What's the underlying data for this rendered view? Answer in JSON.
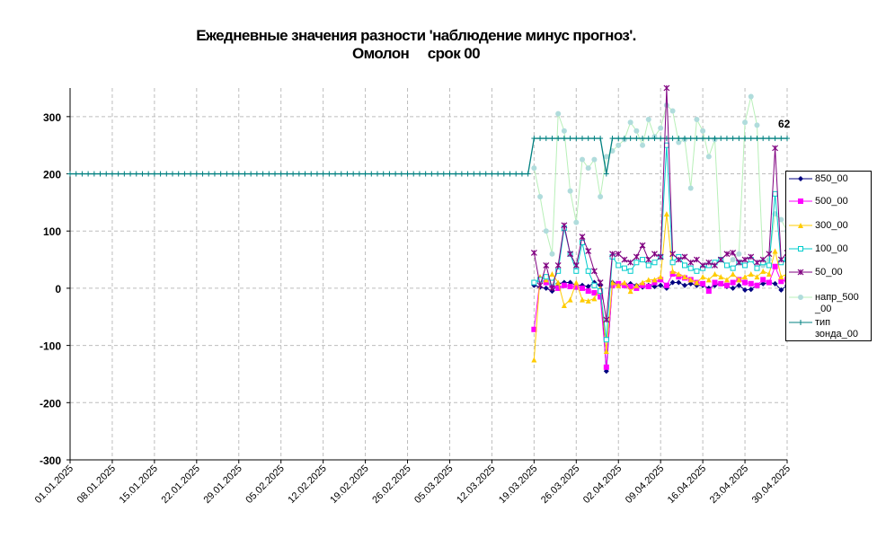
{
  "chart_data": {
    "type": "line",
    "title_line1": "Ежедневные значения разности 'наблюдение минус прогноз'.",
    "title_line2": "Омолон     срок 00",
    "x_start": "2025-01-01",
    "x_end": "2025-04-30",
    "x_tick_labels": [
      "01.01.2025",
      "08.01.2025",
      "15.01.2025",
      "22.01.2025",
      "29.01.2025",
      "05.02.2025",
      "12.02.2025",
      "19.02.2025",
      "26.02.2025",
      "05.03.2025",
      "12.03.2025",
      "19.03.2025",
      "26.03.2025",
      "02.04.2025",
      "09.04.2025",
      "16.04.2025",
      "23.04.2025",
      "30.04.2025"
    ],
    "y_ticks": [
      300,
      200,
      100,
      0,
      -100,
      -200,
      -300
    ],
    "ylim": [
      -300,
      350
    ],
    "grid": true,
    "legend_position": "right",
    "annotation": "62",
    "series": [
      {
        "name": "850_00",
        "color": "#000080",
        "marker": "diamond",
        "points": [
          [
            "2025-03-19",
            5
          ],
          [
            "2025-03-20",
            2
          ],
          [
            "2025-03-21",
            0
          ],
          [
            "2025-03-22",
            -5
          ],
          [
            "2025-03-23",
            8
          ],
          [
            "2025-03-24",
            10
          ],
          [
            "2025-03-25",
            10
          ],
          [
            "2025-03-26",
            5
          ],
          [
            "2025-03-27",
            5
          ],
          [
            "2025-03-28",
            3
          ],
          [
            "2025-03-29",
            10
          ],
          [
            "2025-03-30",
            5
          ],
          [
            "2025-03-31",
            -145
          ],
          [
            "2025-04-01",
            10
          ],
          [
            "2025-04-02",
            8
          ],
          [
            "2025-04-03",
            5
          ],
          [
            "2025-04-04",
            8
          ],
          [
            "2025-04-05",
            5
          ],
          [
            "2025-04-06",
            2
          ],
          [
            "2025-04-07",
            5
          ],
          [
            "2025-04-08",
            3
          ],
          [
            "2025-04-09",
            5
          ],
          [
            "2025-04-10",
            0
          ],
          [
            "2025-04-11",
            10
          ],
          [
            "2025-04-12",
            10
          ],
          [
            "2025-04-13",
            5
          ],
          [
            "2025-04-14",
            8
          ],
          [
            "2025-04-15",
            5
          ],
          [
            "2025-04-16",
            5
          ],
          [
            "2025-04-17",
            0
          ],
          [
            "2025-04-18",
            5
          ],
          [
            "2025-04-19",
            8
          ],
          [
            "2025-04-20",
            3
          ],
          [
            "2025-04-21",
            0
          ],
          [
            "2025-04-22",
            5
          ],
          [
            "2025-04-23",
            -3
          ],
          [
            "2025-04-24",
            -2
          ],
          [
            "2025-04-25",
            5
          ],
          [
            "2025-04-26",
            8
          ],
          [
            "2025-04-27",
            10
          ],
          [
            "2025-04-28",
            8
          ],
          [
            "2025-04-29",
            -3
          ],
          [
            "2025-04-30",
            5
          ]
        ]
      },
      {
        "name": "500_00",
        "color": "#ff00ff",
        "marker": "square",
        "points": [
          [
            "2025-03-19",
            -72
          ],
          [
            "2025-03-20",
            15
          ],
          [
            "2025-03-21",
            10
          ],
          [
            "2025-03-22",
            5
          ],
          [
            "2025-03-23",
            0
          ],
          [
            "2025-03-24",
            5
          ],
          [
            "2025-03-25",
            3
          ],
          [
            "2025-03-26",
            2
          ],
          [
            "2025-03-27",
            0
          ],
          [
            "2025-03-28",
            -5
          ],
          [
            "2025-03-29",
            -8
          ],
          [
            "2025-03-30",
            -15
          ],
          [
            "2025-03-31",
            -138
          ],
          [
            "2025-04-01",
            5
          ],
          [
            "2025-04-02",
            8
          ],
          [
            "2025-04-03",
            5
          ],
          [
            "2025-04-04",
            3
          ],
          [
            "2025-04-05",
            0
          ],
          [
            "2025-04-06",
            5
          ],
          [
            "2025-04-07",
            3
          ],
          [
            "2025-04-08",
            10
          ],
          [
            "2025-04-09",
            15
          ],
          [
            "2025-04-10",
            5
          ],
          [
            "2025-04-11",
            25
          ],
          [
            "2025-04-12",
            20
          ],
          [
            "2025-04-13",
            18
          ],
          [
            "2025-04-14",
            15
          ],
          [
            "2025-04-15",
            10
          ],
          [
            "2025-04-16",
            8
          ],
          [
            "2025-04-17",
            -5
          ],
          [
            "2025-04-18",
            10
          ],
          [
            "2025-04-19",
            8
          ],
          [
            "2025-04-20",
            5
          ],
          [
            "2025-04-21",
            10
          ],
          [
            "2025-04-22",
            15
          ],
          [
            "2025-04-23",
            10
          ],
          [
            "2025-04-24",
            8
          ],
          [
            "2025-04-25",
            5
          ],
          [
            "2025-04-26",
            15
          ],
          [
            "2025-04-27",
            10
          ],
          [
            "2025-04-28",
            38
          ],
          [
            "2025-04-29",
            12
          ],
          [
            "2025-04-30",
            15
          ]
        ]
      },
      {
        "name": "300_00",
        "color": "#ffcc00",
        "marker": "triangle",
        "points": [
          [
            "2025-03-19",
            -125
          ],
          [
            "2025-03-20",
            20
          ],
          [
            "2025-03-21",
            15
          ],
          [
            "2025-03-22",
            25
          ],
          [
            "2025-03-23",
            10
          ],
          [
            "2025-03-24",
            -30
          ],
          [
            "2025-03-25",
            -20
          ],
          [
            "2025-03-26",
            10
          ],
          [
            "2025-03-27",
            -20
          ],
          [
            "2025-03-28",
            -22
          ],
          [
            "2025-03-29",
            -18
          ],
          [
            "2025-03-30",
            0
          ],
          [
            "2025-03-31",
            -110
          ],
          [
            "2025-04-01",
            10
          ],
          [
            "2025-04-02",
            5
          ],
          [
            "2025-04-03",
            10
          ],
          [
            "2025-04-04",
            -5
          ],
          [
            "2025-04-05",
            5
          ],
          [
            "2025-04-06",
            10
          ],
          [
            "2025-04-07",
            15
          ],
          [
            "2025-04-08",
            15
          ],
          [
            "2025-04-09",
            20
          ],
          [
            "2025-04-10",
            130
          ],
          [
            "2025-04-11",
            30
          ],
          [
            "2025-04-12",
            25
          ],
          [
            "2025-04-13",
            20
          ],
          [
            "2025-04-14",
            15
          ],
          [
            "2025-04-15",
            10
          ],
          [
            "2025-04-16",
            20
          ],
          [
            "2025-04-17",
            15
          ],
          [
            "2025-04-18",
            25
          ],
          [
            "2025-04-19",
            20
          ],
          [
            "2025-04-20",
            15
          ],
          [
            "2025-04-21",
            25
          ],
          [
            "2025-04-22",
            15
          ],
          [
            "2025-04-23",
            20
          ],
          [
            "2025-04-24",
            25
          ],
          [
            "2025-04-25",
            20
          ],
          [
            "2025-04-26",
            30
          ],
          [
            "2025-04-27",
            25
          ],
          [
            "2025-04-28",
            65
          ],
          [
            "2025-04-29",
            20
          ],
          [
            "2025-04-30",
            25
          ]
        ]
      },
      {
        "name": "100_00",
        "color": "#00cccc",
        "marker": "square-open",
        "points": [
          [
            "2025-03-19",
            10
          ],
          [
            "2025-03-20",
            15
          ],
          [
            "2025-03-21",
            20
          ],
          [
            "2025-03-22",
            10
          ],
          [
            "2025-03-23",
            30
          ],
          [
            "2025-03-24",
            105
          ],
          [
            "2025-03-25",
            60
          ],
          [
            "2025-03-26",
            30
          ],
          [
            "2025-03-27",
            80
          ],
          [
            "2025-03-28",
            30
          ],
          [
            "2025-03-29",
            5
          ],
          [
            "2025-03-30",
            -5
          ],
          [
            "2025-03-31",
            -90
          ],
          [
            "2025-04-01",
            55
          ],
          [
            "2025-04-02",
            40
          ],
          [
            "2025-04-03",
            35
          ],
          [
            "2025-04-04",
            30
          ],
          [
            "2025-04-05",
            45
          ],
          [
            "2025-04-06",
            50
          ],
          [
            "2025-04-07",
            40
          ],
          [
            "2025-04-08",
            45
          ],
          [
            "2025-04-09",
            55
          ],
          [
            "2025-04-10",
            250
          ],
          [
            "2025-04-11",
            45
          ],
          [
            "2025-04-12",
            55
          ],
          [
            "2025-04-13",
            40
          ],
          [
            "2025-04-14",
            35
          ],
          [
            "2025-04-15",
            30
          ],
          [
            "2025-04-16",
            35
          ],
          [
            "2025-04-17",
            40
          ],
          [
            "2025-04-18",
            45
          ],
          [
            "2025-04-19",
            50
          ],
          [
            "2025-04-20",
            40
          ],
          [
            "2025-04-21",
            35
          ],
          [
            "2025-04-22",
            45
          ],
          [
            "2025-04-23",
            40
          ],
          [
            "2025-04-24",
            50
          ],
          [
            "2025-04-25",
            35
          ],
          [
            "2025-04-26",
            45
          ],
          [
            "2025-04-27",
            40
          ],
          [
            "2025-04-28",
            165
          ],
          [
            "2025-04-29",
            45
          ],
          [
            "2025-04-30",
            50
          ]
        ]
      },
      {
        "name": "50_00",
        "color": "#800080",
        "marker": "star",
        "points": [
          [
            "2025-03-19",
            62
          ],
          [
            "2025-03-20",
            5
          ],
          [
            "2025-03-21",
            40
          ],
          [
            "2025-03-22",
            0
          ],
          [
            "2025-03-23",
            40
          ],
          [
            "2025-03-24",
            110
          ],
          [
            "2025-03-25",
            60
          ],
          [
            "2025-03-26",
            40
          ],
          [
            "2025-03-27",
            90
          ],
          [
            "2025-03-28",
            65
          ],
          [
            "2025-03-29",
            30
          ],
          [
            "2025-03-30",
            10
          ],
          [
            "2025-03-31",
            -55
          ],
          [
            "2025-04-01",
            60
          ],
          [
            "2025-04-02",
            60
          ],
          [
            "2025-04-03",
            50
          ],
          [
            "2025-04-04",
            45
          ],
          [
            "2025-04-05",
            55
          ],
          [
            "2025-04-06",
            75
          ],
          [
            "2025-04-07",
            50
          ],
          [
            "2025-04-08",
            60
          ],
          [
            "2025-04-09",
            55
          ],
          [
            "2025-04-10",
            350
          ],
          [
            "2025-04-11",
            60
          ],
          [
            "2025-04-12",
            50
          ],
          [
            "2025-04-13",
            55
          ],
          [
            "2025-04-14",
            45
          ],
          [
            "2025-04-15",
            50
          ],
          [
            "2025-04-16",
            40
          ],
          [
            "2025-04-17",
            45
          ],
          [
            "2025-04-18",
            40
          ],
          [
            "2025-04-19",
            50
          ],
          [
            "2025-04-20",
            60
          ],
          [
            "2025-04-21",
            62
          ],
          [
            "2025-04-22",
            45
          ],
          [
            "2025-04-23",
            50
          ],
          [
            "2025-04-24",
            55
          ],
          [
            "2025-04-25",
            45
          ],
          [
            "2025-04-26",
            50
          ],
          [
            "2025-04-27",
            60
          ],
          [
            "2025-04-28",
            245
          ],
          [
            "2025-04-29",
            50
          ],
          [
            "2025-04-30",
            62
          ]
        ]
      },
      {
        "name": "напр_500_00",
        "color": "#b0dcdc",
        "line_color": "#b8f0b8",
        "marker": "circle",
        "points": [
          [
            "2025-03-19",
            210
          ],
          [
            "2025-03-20",
            160
          ],
          [
            "2025-03-21",
            100
          ],
          [
            "2025-03-22",
            60
          ],
          [
            "2025-03-23",
            305
          ],
          [
            "2025-03-24",
            275
          ],
          [
            "2025-03-25",
            170
          ],
          [
            "2025-03-26",
            115
          ],
          [
            "2025-03-27",
            225
          ],
          [
            "2025-03-28",
            210
          ],
          [
            "2025-03-29",
            225
          ],
          [
            "2025-03-30",
            160
          ],
          [
            "2025-03-31",
            230
          ],
          [
            "2025-04-01",
            240
          ],
          [
            "2025-04-02",
            250
          ],
          [
            "2025-04-03",
            260
          ],
          [
            "2025-04-04",
            290
          ],
          [
            "2025-04-05",
            275
          ],
          [
            "2025-04-06",
            250
          ],
          [
            "2025-04-07",
            295
          ],
          [
            "2025-04-08",
            265
          ],
          [
            "2025-04-09",
            280
          ],
          [
            "2025-04-10",
            320
          ],
          [
            "2025-04-11",
            310
          ],
          [
            "2025-04-12",
            255
          ],
          [
            "2025-04-13",
            260
          ],
          [
            "2025-04-14",
            175
          ],
          [
            "2025-04-15",
            295
          ],
          [
            "2025-04-16",
            275
          ],
          [
            "2025-04-17",
            230
          ],
          [
            "2025-04-18",
            260
          ],
          [
            "2025-04-19",
            50
          ],
          [
            "2025-04-20",
            40
          ],
          [
            "2025-04-21",
            50
          ],
          [
            "2025-04-22",
            60
          ],
          [
            "2025-04-23",
            290
          ],
          [
            "2025-04-24",
            335
          ],
          [
            "2025-04-25",
            285
          ],
          [
            "2025-04-26",
            40
          ],
          [
            "2025-04-27",
            50
          ],
          [
            "2025-04-28",
            130
          ],
          [
            "2025-04-29",
            120
          ],
          [
            "2025-04-30",
            100
          ]
        ]
      },
      {
        "name": "тип зонда_00",
        "color": "#008080",
        "marker": "plus",
        "segments": [
          {
            "from": "2025-01-01",
            "to": "2025-03-18",
            "value": 200
          },
          {
            "from": "2025-03-19",
            "to": "2025-03-30",
            "value": 262
          },
          {
            "from": "2025-03-31",
            "to": "2025-03-31",
            "value": 200
          },
          {
            "from": "2025-04-01",
            "to": "2025-04-30",
            "value": 262
          }
        ]
      }
    ]
  },
  "legend": {
    "items": [
      {
        "label": "850_00"
      },
      {
        "label": "500_00"
      },
      {
        "label": "300_00"
      },
      {
        "label": "100_00"
      },
      {
        "label": "50_00"
      },
      {
        "label": "напр_500\n_00"
      },
      {
        "label": "тип\nзонда_00"
      }
    ]
  }
}
